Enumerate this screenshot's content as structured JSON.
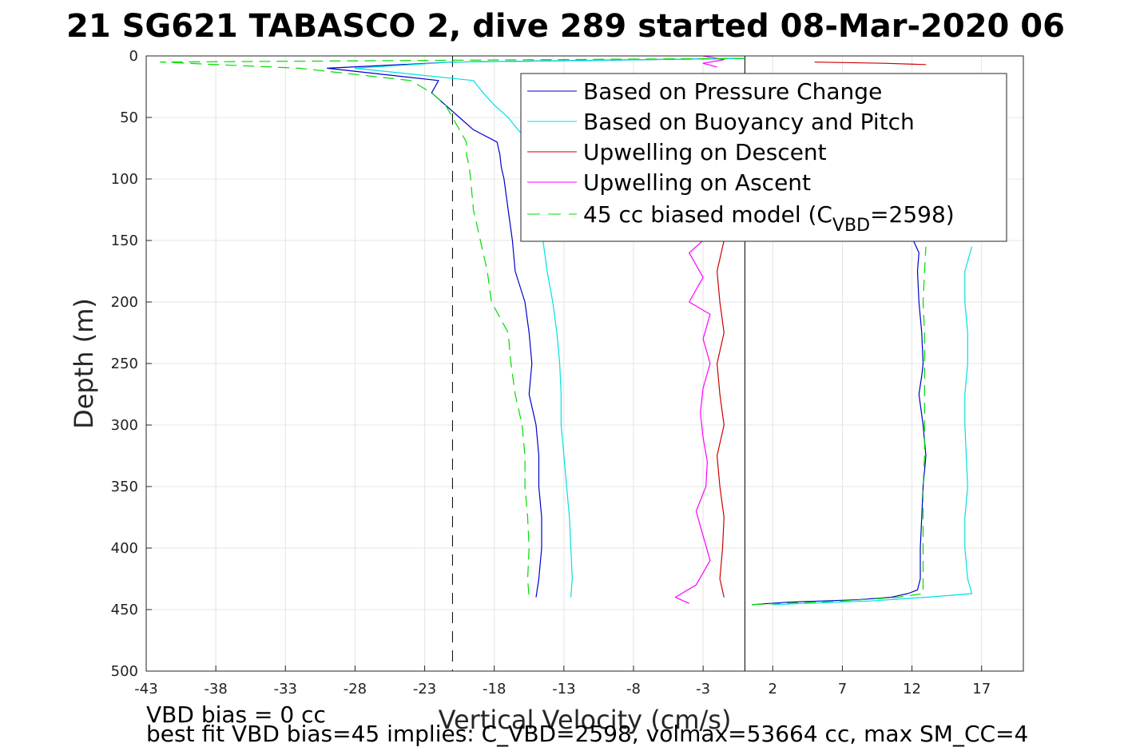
{
  "chart_data": {
    "type": "line",
    "title": "21 SG621 TABASCO 2, dive 289 started 08-Mar-2020 06",
    "xlabel": "Vertical Velocity (cm/s)",
    "ylabel": "Depth (m)",
    "xlim": [
      -43,
      20
    ],
    "ylim": [
      500,
      0
    ],
    "x_ticks": [
      "-43",
      "-38",
      "-33",
      "-28",
      "-23",
      "-18",
      "-13",
      "-8",
      "-3",
      "2",
      "7",
      "12",
      "17"
    ],
    "y_ticks": [
      "0",
      "50",
      "100",
      "150",
      "200",
      "250",
      "300",
      "350",
      "400",
      "450",
      "500"
    ],
    "grid": true,
    "legend_position": "top-right",
    "reference_lines": [
      {
        "x": -21,
        "style": "dashed",
        "color": "#000000"
      },
      {
        "x": 0,
        "style": "solid",
        "color": "#000000"
      }
    ],
    "series": [
      {
        "name": "Based on Pressure Change",
        "color": "#0000cc",
        "style": "solid",
        "descent": {
          "depth": [
            2,
            5,
            10,
            20,
            30,
            40,
            50,
            60,
            70,
            80,
            90,
            100,
            125,
            150,
            175,
            200,
            225,
            250,
            275,
            300,
            325,
            350,
            375,
            400,
            425,
            440
          ],
          "velocity": [
            0,
            -21,
            -30,
            -22,
            -22.5,
            -21.5,
            -20.5,
            -19.5,
            -17.8,
            -17.6,
            -17.5,
            -17.3,
            -17,
            -16.7,
            -16.5,
            -15.8,
            -15.5,
            -15.3,
            -15.5,
            -15,
            -14.8,
            -14.8,
            -14.6,
            -14.6,
            -14.8,
            -15
          ]
        },
        "ascent": {
          "depth": [
            446,
            444,
            442,
            440,
            437,
            434,
            425,
            400,
            375,
            350,
            325,
            300,
            275,
            260,
            250,
            225,
            200,
            175,
            160,
            150,
            140
          ],
          "velocity": [
            0.5,
            3,
            8,
            10.5,
            11.7,
            12.4,
            12.6,
            12.6,
            12.7,
            12.8,
            13,
            12.8,
            12.5,
            12.7,
            12.8,
            12.7,
            12.5,
            12.4,
            12.5,
            12.1,
            12
          ]
        }
      },
      {
        "name": "Based on Buoyancy and Pitch",
        "color": "#00e0e0",
        "style": "solid",
        "descent": {
          "depth": [
            2,
            5,
            10,
            20,
            30,
            40,
            50,
            60,
            70,
            80,
            90,
            100,
            125,
            150,
            175,
            200,
            225,
            250,
            275,
            300,
            325,
            350,
            375,
            400,
            425,
            440
          ],
          "velocity": [
            0,
            -21,
            -28,
            -19.5,
            -18.8,
            -18,
            -17,
            -16.3,
            -15.5,
            -15.3,
            -15.2,
            -15,
            -14.8,
            -14.5,
            -14.2,
            -13.8,
            -13.5,
            -13.3,
            -13.2,
            -13.2,
            -13,
            -12.8,
            -12.6,
            -12.5,
            -12.4,
            -12.5
          ]
        },
        "ascent": {
          "depth": [
            446,
            443,
            440,
            437,
            425,
            400,
            375,
            350,
            325,
            300,
            275,
            250,
            225,
            200,
            175,
            155
          ],
          "velocity": [
            2,
            9,
            13,
            16.3,
            16,
            15.8,
            15.8,
            16,
            15.9,
            15.8,
            15.8,
            16,
            16,
            15.8,
            15.8,
            16.3
          ]
        }
      },
      {
        "name": "Upwelling on Descent",
        "color": "#cc0000",
        "style": "solid",
        "descent": {
          "depth": [
            150,
            175,
            200,
            225,
            250,
            275,
            300,
            325,
            350,
            375,
            400,
            425,
            440
          ],
          "velocity": [
            -1.5,
            -2,
            -1.8,
            -1.5,
            -2,
            -1.8,
            -1.5,
            -2,
            -1.8,
            -1.5,
            -1.6,
            -1.8,
            -1.5
          ]
        },
        "ascent": {
          "depth": [
            5,
            6,
            7
          ],
          "velocity": [
            5,
            10,
            13
          ]
        }
      },
      {
        "name": "Upwelling on Ascent",
        "color": "#ff00ff",
        "style": "solid",
        "descent": {
          "depth": [
            445,
            440,
            430,
            410,
            390,
            370,
            350,
            330,
            310,
            290,
            270,
            250,
            230,
            210,
            200,
            180,
            160,
            150
          ],
          "velocity": [
            -4,
            -5,
            -3.5,
            -2.5,
            -3,
            -3.5,
            -2.8,
            -2.7,
            -3,
            -3.2,
            -3,
            -2.5,
            -3,
            -2.5,
            -4,
            -3,
            -4,
            -3
          ]
        },
        "ascent": {
          "depth": [
            0,
            3,
            6,
            9
          ],
          "velocity": [
            -3,
            -1.5,
            -3,
            -2
          ]
        }
      },
      {
        "name": "45 cc biased model (C_VBD=2598)",
        "color": "#00dd00",
        "style": "dashed",
        "descent": {
          "depth": [
            2,
            5,
            10,
            20,
            30,
            40,
            50,
            60,
            70,
            80,
            90,
            100,
            125,
            150,
            175,
            200,
            225,
            250,
            275,
            300,
            325,
            350,
            375,
            400,
            425,
            440
          ],
          "velocity": [
            0,
            -42,
            -32,
            -24,
            -22.5,
            -21.5,
            -21,
            -20.5,
            -20,
            -20,
            -19.8,
            -19.7,
            -19.5,
            -19,
            -18.5,
            -18.2,
            -17,
            -16.8,
            -16.5,
            -16,
            -15.8,
            -15.8,
            -15.6,
            -15.5,
            -15.6,
            -15.5
          ]
        },
        "ascent": {
          "depth": [
            446,
            443,
            440,
            437,
            425,
            400,
            375,
            350,
            325,
            300,
            275,
            250,
            225,
            200,
            175,
            155
          ],
          "velocity": [
            0.5,
            7,
            11,
            12.8,
            12.8,
            12.8,
            12.8,
            12.8,
            12.9,
            12.9,
            12.9,
            12.9,
            12.9,
            12.8,
            12.9,
            13
          ]
        }
      }
    ]
  },
  "legend": {
    "entries": [
      "Based on Pressure Change",
      "Based on Buoyancy and Pitch",
      "Upwelling on Descent",
      "Upwelling on Ascent"
    ],
    "model_prefix": "45 cc biased model (C",
    "model_sub": "VBD",
    "model_suffix": "=2598)"
  },
  "footer": {
    "line1": "VBD bias = 0 cc",
    "line2": "best fit VBD bias=45 implies: C_VBD=2598, volmax=53664 cc, max SM_CC=4"
  }
}
